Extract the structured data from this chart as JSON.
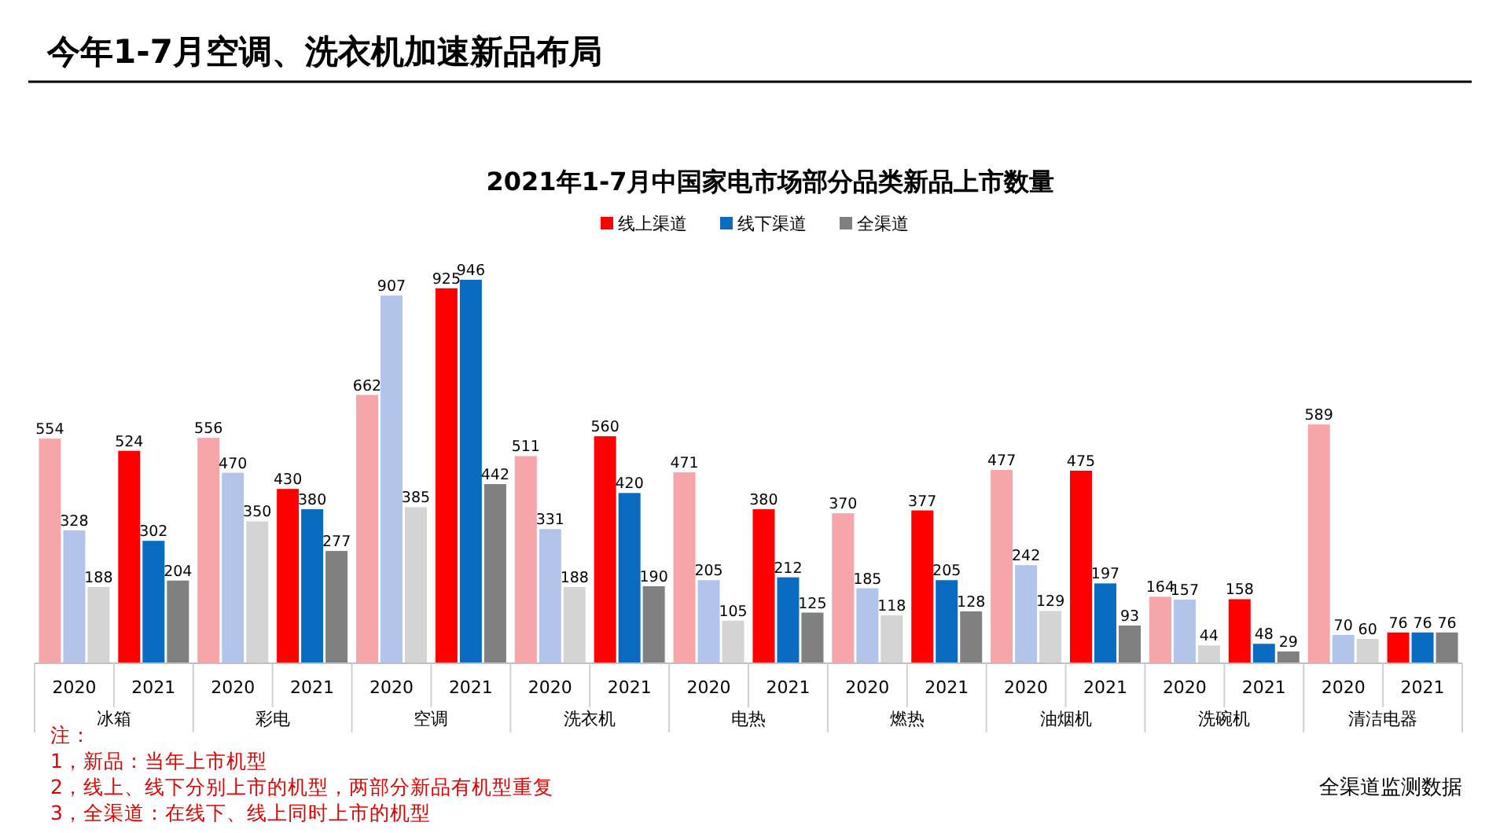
{
  "chart_data": {
    "type": "bar",
    "title": "今年1-7月空调、洗衣机加速新品布局",
    "subtitle": "2021年1-7月中国家电市场部分品类新品上市数量",
    "categories": [
      "2020",
      "2021",
      "2020",
      "2021",
      "2020",
      "2021",
      "2020",
      "2021",
      "2020",
      "2021",
      "2020",
      "2021",
      "2020",
      "2021",
      "2020",
      "2021",
      "2020",
      "2021"
    ],
    "series": [
      {
        "name": "线上渠道",
        "color": "#ff0000",
        "colors": [
          "#f6a5a8",
          "#ff0000",
          "#f6a5a8",
          "#ff0000",
          "#f6a5a8",
          "#ff0000",
          "#f6a5a8",
          "#ff0000",
          "#f6a5a8",
          "#ff0000",
          "#f6a5a8",
          "#ff0000",
          "#f6a5a8",
          "#ff0000",
          "#f6a5a8",
          "#ff0000",
          "#f6a5a8",
          "#ff0000"
        ],
        "values": [
          554,
          524,
          556,
          430,
          662,
          925,
          511,
          560,
          471,
          380,
          370,
          377,
          477,
          475,
          164,
          158,
          589,
          76
        ]
      },
      {
        "name": "线下渠道",
        "color": "#0a6cc0",
        "colors": [
          "#b2c4ea",
          "#0a6cc0",
          "#b2c4ea",
          "#0a6cc0",
          "#b2c4ea",
          "#0a6cc0",
          "#b2c4ea",
          "#0a6cc0",
          "#b2c4ea",
          "#0a6cc0",
          "#b2c4ea",
          "#0a6cc0",
          "#b2c4ea",
          "#0a6cc0",
          "#b2c4ea",
          "#0a6cc0",
          "#b2c4ea",
          "#0a6cc0"
        ],
        "values": [
          328,
          302,
          470,
          380,
          907,
          946,
          331,
          420,
          205,
          212,
          185,
          205,
          242,
          197,
          157,
          48,
          70,
          76
        ]
      },
      {
        "name": "全渠道",
        "color": "#808080",
        "colors": [
          "#d4d4d4",
          "#808080",
          "#d4d4d4",
          "#808080",
          "#d4d4d4",
          "#808080",
          "#d4d4d4",
          "#808080",
          "#d4d4d4",
          "#808080",
          "#d4d4d4",
          "#808080",
          "#d4d4d4",
          "#808080",
          "#d4d4d4",
          "#808080",
          "#d4d4d4",
          "#808080"
        ],
        "values": [
          188,
          204,
          350,
          277,
          385,
          442,
          188,
          190,
          105,
          125,
          118,
          128,
          129,
          93,
          44,
          29,
          60,
          76
        ]
      }
    ],
    "data_labels": true,
    "legend": "top",
    "annotations": [
      "冰箱",
      "彩电",
      "空调",
      "洗衣机",
      "电热",
      "燃热",
      "油烟机",
      "洗碗机",
      "清洁电器",
      "注：",
      "1，新品：当年上市机型",
      "2，线上、线下分别上市的机型，两部分新品有机型重复",
      "3，全渠道：在线下、线上同时上市的机型",
      "全渠道监测数据"
    ]
  }
}
